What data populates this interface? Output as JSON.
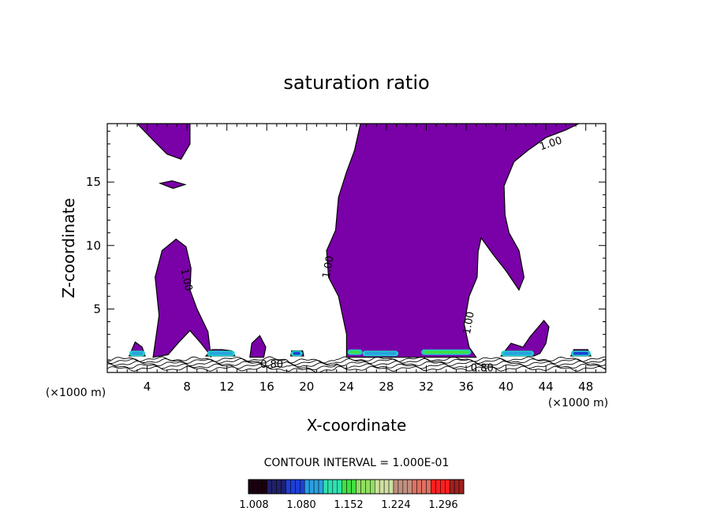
{
  "chart_data": {
    "type": "contour",
    "title": "saturation ratio",
    "xlabel": "X-coordinate",
    "ylabel": "Z-coordinate",
    "x_unit": "(×1000 m)",
    "y_unit": "(×1000 m)",
    "xlim": [
      0,
      50
    ],
    "ylim": [
      0,
      19.6
    ],
    "x_ticks": [
      4,
      8,
      12,
      16,
      20,
      24,
      28,
      32,
      36,
      40,
      44,
      48
    ],
    "x_tick_labels": [
      "4",
      "8",
      "12",
      "16",
      "20",
      "24",
      "28",
      "32",
      "36",
      "40",
      "44",
      "48"
    ],
    "y_ticks": [
      5,
      10,
      15
    ],
    "y_tick_labels": [
      "5",
      "10",
      "15"
    ],
    "contour_interval_text": "CONTOUR INTERVAL = 1.000E-01",
    "contour_labels": [
      {
        "text": "1.00",
        "x": 7.9,
        "z": 7.3,
        "angle": 78
      },
      {
        "text": "1.00",
        "x": 22.2,
        "z": 8.3,
        "angle": -80
      },
      {
        "text": "1.00",
        "x": 36.3,
        "z": 3.9,
        "angle": -80
      },
      {
        "text": "1.00",
        "x": 44.5,
        "z": 18.0,
        "angle": -18
      },
      {
        "text": "0.80",
        "x": 16.5,
        "z": 0.6,
        "angle": 0
      },
      {
        "text": "0.80",
        "x": 37.6,
        "z": 0.3,
        "angle": 0
      }
    ],
    "fill_threshold": 1.0,
    "colorbar": {
      "labels": [
        "1.008",
        "1.080",
        "1.152",
        "1.224",
        "1.296"
      ],
      "min": 1.008,
      "max": 1.368,
      "colors": [
        "#1a0010",
        "#20206a",
        "#1d3fd8",
        "#2aa0e0",
        "#30e0b0",
        "#40e040",
        "#90e060",
        "#d0e0a0",
        "#c09080",
        "#e07060",
        "#ff2020",
        "#a02020"
      ]
    },
    "saturated_regions": [
      {
        "name": "upper-left",
        "points": [
          [
            3.0,
            19.6
          ],
          [
            8.3,
            19.6
          ],
          [
            8.3,
            18.0
          ],
          [
            7.4,
            16.8
          ],
          [
            6.0,
            17.2
          ],
          [
            4.6,
            18.3
          ]
        ]
      },
      {
        "name": "small-blob-15km",
        "points": [
          [
            5.3,
            14.9
          ],
          [
            6.5,
            15.1
          ],
          [
            7.8,
            14.8
          ],
          [
            6.6,
            14.5
          ]
        ]
      },
      {
        "name": "left-tower",
        "points": [
          [
            4.6,
            1.2
          ],
          [
            5.2,
            4.5
          ],
          [
            4.8,
            7.5
          ],
          [
            5.5,
            9.6
          ],
          [
            6.9,
            10.5
          ],
          [
            7.9,
            9.9
          ],
          [
            8.4,
            8.2
          ],
          [
            8.3,
            6.5
          ],
          [
            9.0,
            5.0
          ],
          [
            10.1,
            3.2
          ],
          [
            10.4,
            1.2
          ],
          [
            10.2,
            1.5
          ],
          [
            9.4,
            2.3
          ],
          [
            8.3,
            3.3
          ],
          [
            7.2,
            2.4
          ],
          [
            6.1,
            1.4
          ]
        ]
      },
      {
        "name": "left-spur",
        "points": [
          [
            2.2,
            1.3
          ],
          [
            2.8,
            2.4
          ],
          [
            3.5,
            2.0
          ],
          [
            3.8,
            1.3
          ]
        ]
      },
      {
        "name": "right-of-left",
        "points": [
          [
            9.9,
            1.3
          ],
          [
            10.5,
            1.8
          ],
          [
            11.5,
            1.8
          ],
          [
            12.5,
            1.7
          ],
          [
            12.8,
            1.3
          ]
        ]
      },
      {
        "name": "blob-14km",
        "points": [
          [
            14.3,
            1.2
          ],
          [
            14.5,
            2.3
          ],
          [
            15.3,
            2.9
          ],
          [
            15.9,
            2.0
          ],
          [
            15.7,
            1.2
          ]
        ]
      },
      {
        "name": "blob-19km",
        "points": [
          [
            18.4,
            1.3
          ],
          [
            18.5,
            1.7
          ],
          [
            19.6,
            1.7
          ],
          [
            19.7,
            1.3
          ]
        ]
      },
      {
        "name": "central-column",
        "points": [
          [
            24.0,
            1.2
          ],
          [
            24.0,
            3.0
          ],
          [
            23.2,
            6.0
          ],
          [
            22.2,
            7.5
          ],
          [
            22.0,
            9.6
          ],
          [
            22.9,
            11.2
          ],
          [
            23.2,
            13.8
          ],
          [
            24.0,
            15.8
          ],
          [
            24.8,
            17.5
          ],
          [
            25.4,
            19.6
          ],
          [
            47.3,
            19.6
          ],
          [
            46.0,
            19.1
          ],
          [
            44.0,
            18.5
          ],
          [
            42.2,
            17.5
          ],
          [
            40.8,
            16.6
          ],
          [
            39.8,
            14.7
          ],
          [
            39.9,
            12.4
          ],
          [
            40.3,
            11.0
          ],
          [
            41.3,
            9.6
          ],
          [
            41.8,
            7.5
          ],
          [
            41.3,
            6.5
          ],
          [
            40.0,
            8.0
          ],
          [
            38.7,
            9.3
          ],
          [
            37.5,
            10.6
          ],
          [
            37.2,
            9.5
          ],
          [
            37.1,
            7.5
          ],
          [
            36.3,
            6.0
          ],
          [
            35.8,
            3.8
          ],
          [
            36.3,
            2.0
          ],
          [
            37.0,
            1.2
          ]
        ]
      },
      {
        "name": "right-blob",
        "points": [
          [
            39.5,
            1.3
          ],
          [
            40.5,
            2.3
          ],
          [
            41.7,
            2.0
          ],
          [
            42.4,
            2.8
          ],
          [
            43.8,
            4.1
          ],
          [
            44.3,
            3.6
          ],
          [
            44.0,
            2.3
          ],
          [
            43.4,
            1.5
          ],
          [
            42.8,
            1.3
          ]
        ]
      },
      {
        "name": "far-right",
        "points": [
          [
            46.5,
            1.3
          ],
          [
            46.8,
            1.8
          ],
          [
            48.2,
            1.8
          ],
          [
            48.5,
            1.3
          ]
        ]
      }
    ],
    "high_bands": [
      {
        "x0": 2.2,
        "x1": 3.8,
        "z": 1.5,
        "level": 1.12
      },
      {
        "x0": 10.0,
        "x1": 12.8,
        "z": 1.5,
        "level": 1.1
      },
      {
        "x0": 18.4,
        "x1": 19.6,
        "z": 1.5,
        "level": 1.08
      },
      {
        "x0": 24.1,
        "x1": 25.6,
        "z": 1.6,
        "level": 1.16
      },
      {
        "x0": 25.6,
        "x1": 29.2,
        "z": 1.5,
        "level": 1.12
      },
      {
        "x0": 31.5,
        "x1": 36.5,
        "z": 1.6,
        "level": 1.18
      },
      {
        "x0": 39.5,
        "x1": 42.8,
        "z": 1.5,
        "level": 1.1
      },
      {
        "x0": 46.5,
        "x1": 48.5,
        "z": 1.5,
        "level": 1.08
      }
    ],
    "surface_contours_z": [
      0.3,
      0.5,
      0.7,
      0.9,
      1.05
    ]
  }
}
